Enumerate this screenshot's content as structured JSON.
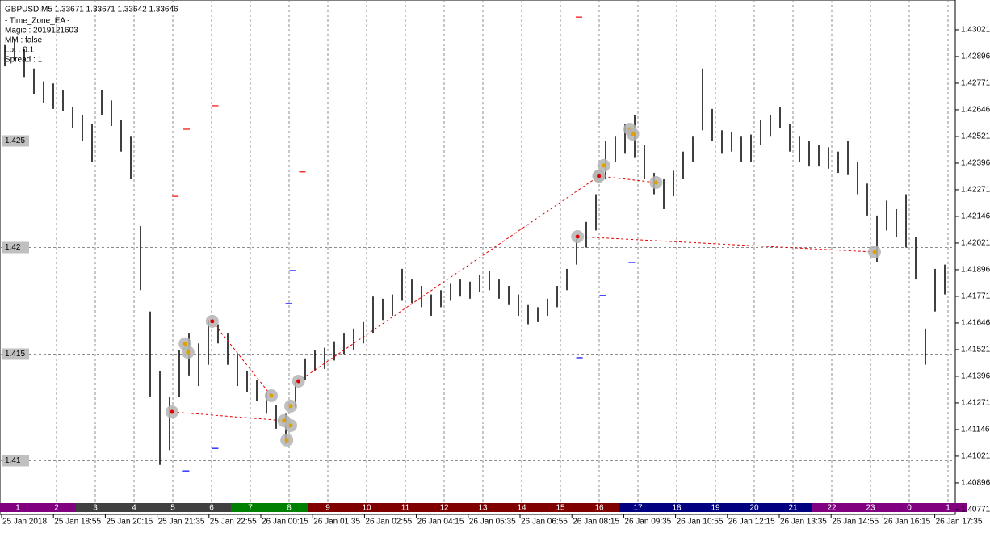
{
  "chart_data": {
    "type": "ohlc",
    "title": "GBPUSD,M5  1.33671 1.33671 1.33642 1.33646",
    "info_lines": [
      "- Time_Zone_EA -",
      "Magic : 2019121603",
      "MM : false",
      "Lot : 0.1",
      "Spread : 1"
    ],
    "color": "#000000",
    "high": [
      1.4295,
      1.4298,
      1.4293,
      1.4284,
      1.4278,
      1.4277,
      1.4274,
      1.4266,
      1.4262,
      1.4258,
      1.4274,
      1.4269,
      1.426,
      1.4252,
      1.421,
      1.417,
      1.4142,
      1.413,
      1.4152,
      1.416,
      1.4155,
      1.4166,
      1.4164,
      1.416,
      1.415,
      1.4142,
      1.4138,
      1.4132,
      1.4126,
      1.4122,
      1.4137,
      1.4148,
      1.4152,
      1.4153,
      1.4156,
      1.416,
      1.4162,
      1.4165,
      1.4177,
      1.4176,
      1.4178,
      1.419,
      1.4185,
      1.4182,
      1.4178,
      1.418,
      1.4183,
      1.4185,
      1.4184,
      1.4187,
      1.4189,
      1.4185,
      1.4182,
      1.4178,
      1.4173,
      1.4172,
      1.4176,
      1.4182,
      1.419,
      1.4204,
      1.4212,
      1.4225,
      1.425,
      1.4252,
      1.4258,
      1.4262,
      1.4248,
      1.4235,
      1.4232,
      1.4236,
      1.4245,
      1.4252,
      1.4284,
      1.4265,
      1.4255,
      1.4254,
      1.4252,
      1.4253,
      1.426,
      1.4262,
      1.4266,
      1.4258,
      1.4252,
      1.425,
      1.4248,
      1.4247,
      1.4245,
      1.425,
      1.424,
      1.423,
      1.4215,
      1.4222,
      1.4218,
      1.4225,
      1.4205,
      1.4162,
      1.419,
      1.4192
    ],
    "low": [
      1.4285,
      1.4288,
      1.428,
      1.4272,
      1.4268,
      1.4265,
      1.4264,
      1.4256,
      1.425,
      1.424,
      1.4262,
      1.4257,
      1.4245,
      1.4232,
      1.418,
      1.413,
      1.4098,
      1.4105,
      1.413,
      1.414,
      1.4135,
      1.4145,
      1.4155,
      1.4145,
      1.4135,
      1.4132,
      1.4128,
      1.4122,
      1.4115,
      1.4108,
      1.4125,
      1.4138,
      1.4142,
      1.4143,
      1.4147,
      1.415,
      1.4152,
      1.4155,
      1.416,
      1.4166,
      1.4168,
      1.4175,
      1.4174,
      1.4172,
      1.4168,
      1.4172,
      1.4175,
      1.4177,
      1.4176,
      1.4179,
      1.418,
      1.4176,
      1.4173,
      1.4168,
      1.4164,
      1.4165,
      1.4168,
      1.4172,
      1.418,
      1.4192,
      1.42,
      1.4208,
      1.4232,
      1.424,
      1.4244,
      1.4242,
      1.4232,
      1.4225,
      1.4218,
      1.4224,
      1.4232,
      1.424,
      1.4255,
      1.425,
      1.4244,
      1.4245,
      1.424,
      1.424,
      1.4248,
      1.4252,
      1.4256,
      1.4245,
      1.424,
      1.4238,
      1.4238,
      1.4237,
      1.4235,
      1.4234,
      1.4225,
      1.4215,
      1.4193,
      1.4208,
      1.4205,
      1.42,
      1.4185,
      1.4145,
      1.417,
      1.4178
    ],
    "ylim": [
      1.40748,
      1.43161
    ],
    "yticks": [
      1.43021,
      1.42896,
      1.42771,
      1.42646,
      1.42521,
      1.42396,
      1.42271,
      1.42146,
      1.42021,
      1.41896,
      1.41771,
      1.41646,
      1.41521,
      1.41396,
      1.41271,
      1.41146,
      1.41021,
      1.40896,
      1.40771
    ],
    "level_labels": [
      1.425,
      1.42,
      1.415,
      1.41
    ],
    "time_labels": [
      "25 Jan 2018",
      "25 Jan 18:55",
      "25 Jan 20:15",
      "25 Jan 21:35",
      "25 Jan 22:55",
      "26 Jan 00:15",
      "26 Jan 01:35",
      "26 Jan 02:55",
      "26 Jan 04:15",
      "26 Jan 05:35",
      "26 Jan 06:55",
      "26 Jan 08:15",
      "26 Jan 09:35",
      "26 Jan 10:55",
      "26 Jan 12:15",
      "26 Jan 13:35",
      "26 Jan 14:55",
      "26 Jan 16:15",
      "26 Jan 17:35"
    ],
    "hour_labels": [
      1,
      2,
      3,
      4,
      5,
      6,
      7,
      8,
      9,
      10,
      11,
      12,
      13,
      14,
      15,
      16,
      17,
      18,
      19,
      20,
      21,
      22,
      23,
      0,
      1
    ],
    "hour_colors": [
      "#800080",
      "#800080",
      "#404040",
      "#404040",
      "#404040",
      "#404040",
      "#008000",
      "#008000",
      "#800000",
      "#800000",
      "#800000",
      "#800000",
      "#800000",
      "#800000",
      "#800000",
      "#800000",
      "#000080",
      "#000080",
      "#000080",
      "#000080",
      "#000080",
      "#800080",
      "#800080",
      "#800080",
      "#800080"
    ],
    "trades": [
      {
        "open_bar": 17.25,
        "open_price": 1.41229,
        "close_bar": 28.8,
        "close_price": 1.41188
      },
      {
        "open_bar": 21.4,
        "open_price": 1.41654,
        "close_bar": 27.5,
        "close_price": 1.41305
      },
      {
        "open_bar": 30.3,
        "open_price": 1.41373,
        "close_bar": 61.3,
        "close_price": 1.42335
      },
      {
        "open_bar": 61.3,
        "open_price": 1.42335,
        "close_bar": 67.2,
        "close_price": 1.42305
      },
      {
        "open_bar": 59.1,
        "open_price": 1.42051,
        "close_bar": 89.75,
        "close_price": 1.41979
      }
    ],
    "markers": [
      {
        "bar": 18.6,
        "price": 1.41548
      },
      {
        "bar": 18.9,
        "price": 1.41509
      },
      {
        "bar": 29.5,
        "price": 1.41256
      },
      {
        "bar": 29.5,
        "price": 1.41165
      },
      {
        "bar": 29.1,
        "price": 1.41097
      },
      {
        "bar": 61.8,
        "price": 1.42385
      },
      {
        "bar": 64.5,
        "price": 1.42555
      },
      {
        "bar": 64.8,
        "price": 1.42532
      }
    ],
    "level_marks": [
      {
        "bar": 18.75,
        "price": 1.42555,
        "color": "#ff0000"
      },
      {
        "bar": 21.7,
        "price": 1.42665,
        "color": "#ff0000"
      },
      {
        "bar": 17.6,
        "price": 1.4224,
        "color": "#ff0000"
      },
      {
        "bar": 30.7,
        "price": 1.42355,
        "color": "#ff0000"
      },
      {
        "bar": 59.25,
        "price": 1.43081,
        "color": "#ff0000"
      },
      {
        "bar": 29.7,
        "price": 1.41892,
        "color": "#0000ff"
      },
      {
        "bar": 29.3,
        "price": 1.41737,
        "color": "#0000ff"
      },
      {
        "bar": 21.7,
        "price": 1.41058,
        "color": "#0000ff"
      },
      {
        "bar": 18.7,
        "price": 1.40952,
        "color": "#0000ff"
      },
      {
        "bar": 61.7,
        "price": 1.41775,
        "color": "#0000ff"
      },
      {
        "bar": 59.3,
        "price": 1.41483,
        "color": "#0000ff"
      },
      {
        "bar": 64.7,
        "price": 1.4193,
        "color": "#0000ff"
      }
    ]
  }
}
